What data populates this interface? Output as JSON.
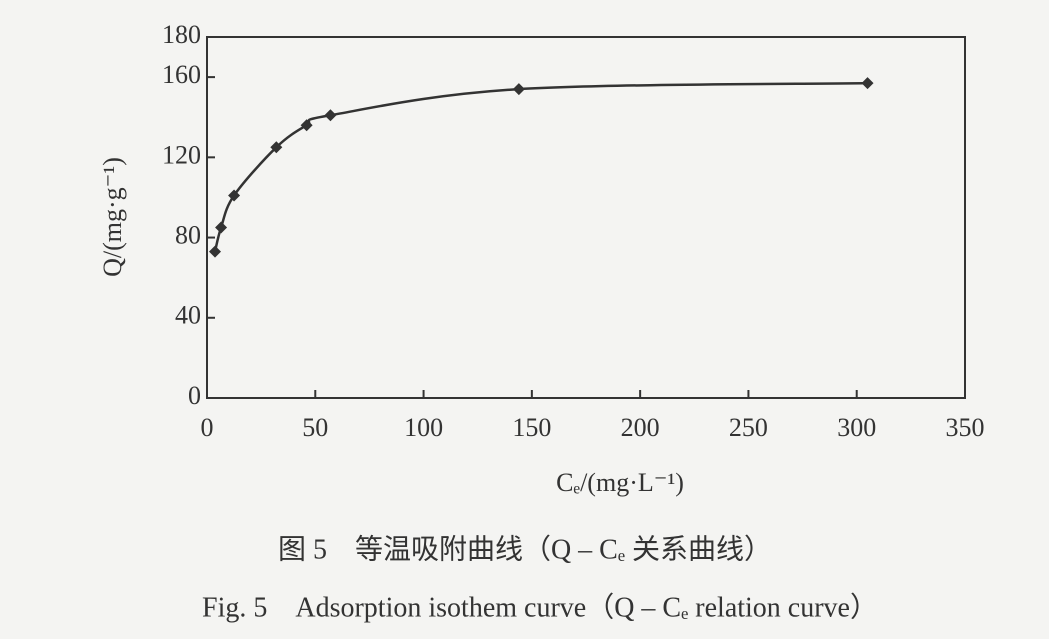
{
  "chart_data": {
    "type": "line",
    "ylabel": "Q/(mg·g⁻¹)",
    "xlabel": "Cₑ/(mg·L⁻¹)",
    "caption_cn": "图 5　等温吸附曲线（Q – Cₑ 关系曲线）",
    "caption_en": "Fig. 5　Adsorption isothem curve（Q – Cₑ relation curve）",
    "x": [
      3.7,
      6.5,
      12.5,
      32,
      46,
      57,
      144,
      305
    ],
    "series": [
      {
        "color": "#333333",
        "values": [
          73,
          85,
          101,
          125,
          136,
          141,
          154,
          157
        ]
      }
    ],
    "xlim": [
      0,
      350
    ],
    "xticks": [
      0,
      50,
      100,
      150,
      200,
      250,
      300,
      350
    ],
    "ylim": [
      0,
      180
    ],
    "yticks": [
      0,
      40,
      80,
      120,
      160,
      180
    ]
  }
}
